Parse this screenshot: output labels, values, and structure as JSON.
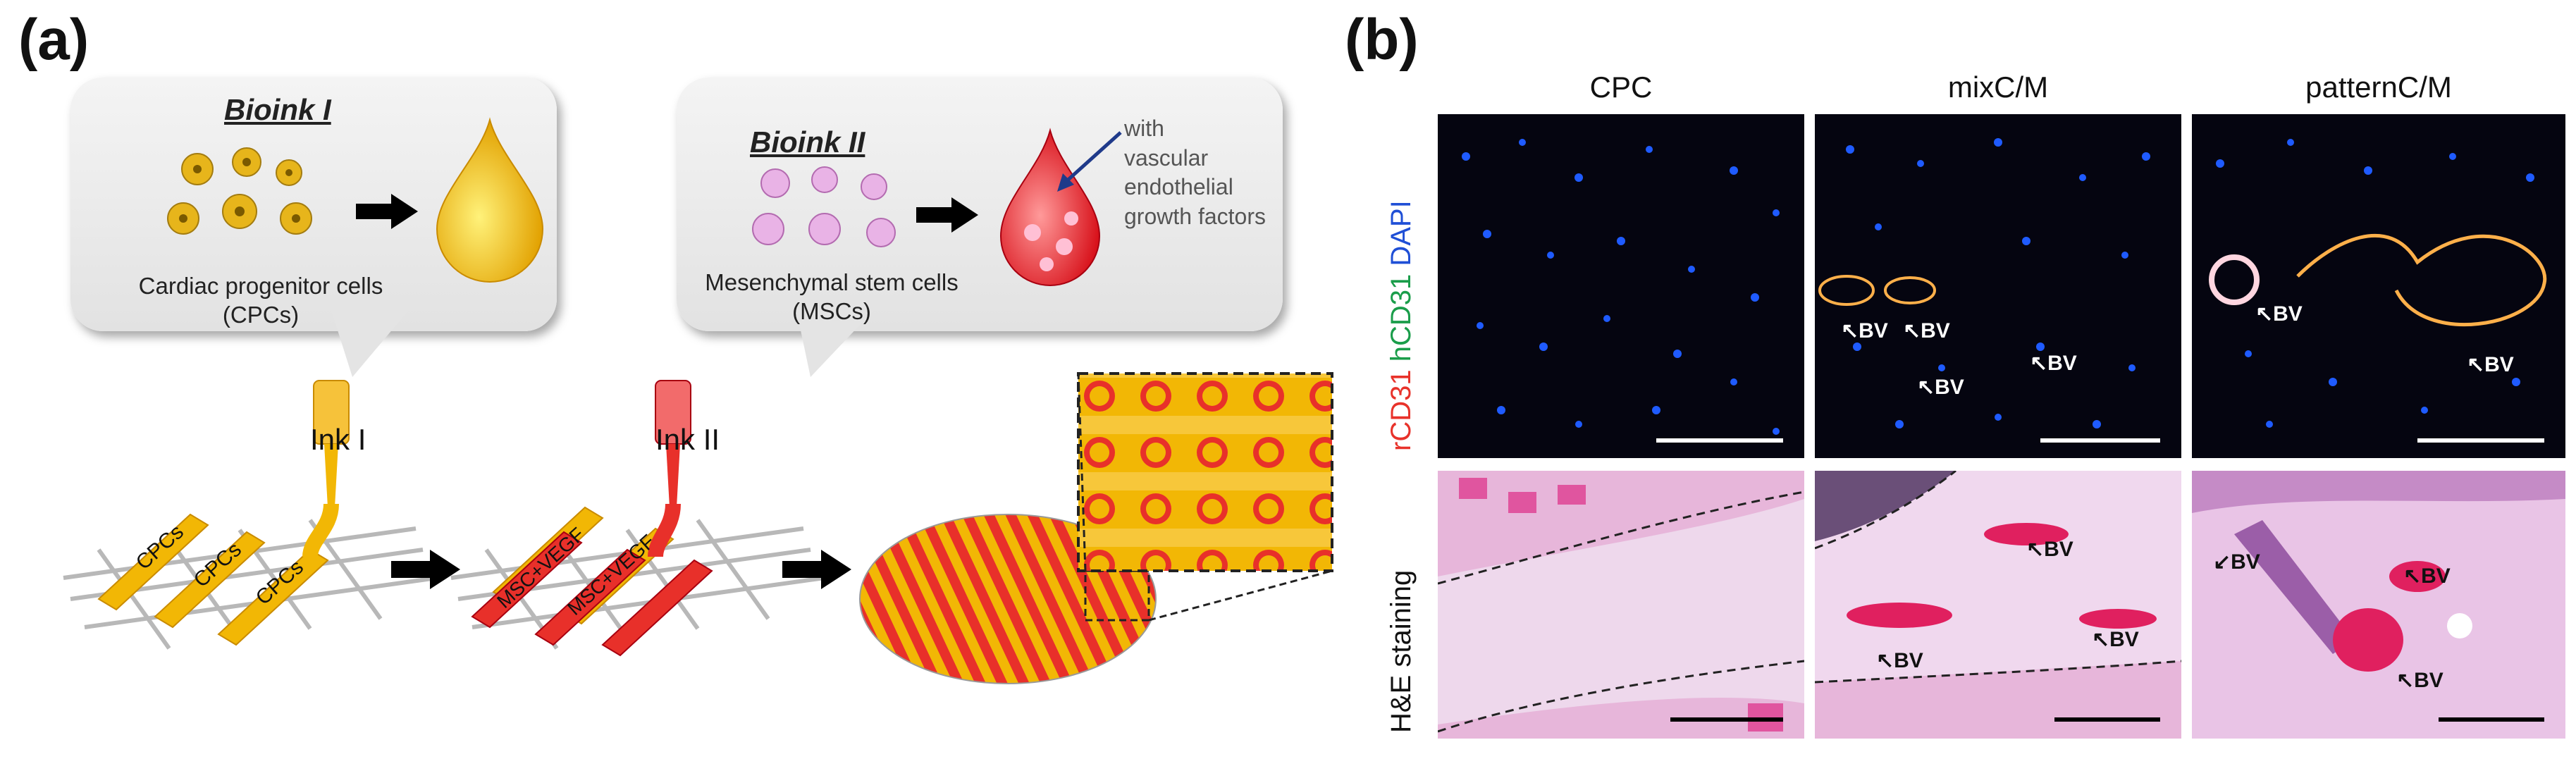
{
  "panel_a": {
    "letter": "(a)",
    "bubble1": {
      "title": "Bioink I",
      "caption_line1": "Cardiac progenitor cells",
      "caption_line2": "(CPCs)"
    },
    "bubble2": {
      "title": "Bioink II",
      "caption_line1": "Mesenchymal stem cells",
      "caption_line2": "(MSCs)",
      "annotation_line1": "with",
      "annotation_line2": "vascular",
      "annotation_line3": "endothelial",
      "annotation_line4": "growth factors"
    },
    "ink1_label": "Ink I",
    "ink2_label": "Ink II",
    "strand1_label": "CPCs",
    "strand2_label": "CPCs",
    "strand3_label": "CPCs",
    "strand4_label": "MSC+VEGF",
    "strand5_label": "MSC+VEGF"
  },
  "panel_b": {
    "letter": "(b)",
    "col_headers": [
      "CPC",
      "mixC/M",
      "patternC/M"
    ],
    "row1_label_parts": [
      {
        "text": "rCD31 ",
        "color": "#e8322a"
      },
      {
        "text": "hCD31 ",
        "color": "#1a9d4a"
      },
      {
        "text": "DAPI",
        "color": "#1f4fd6"
      }
    ],
    "row2_label": "H&E staining",
    "bv": "BV"
  },
  "colors": {
    "yellow": "#f2b705",
    "red": "#e8302a",
    "fluor_bg": "#050510",
    "he_bg": "#ecd3ea"
  }
}
